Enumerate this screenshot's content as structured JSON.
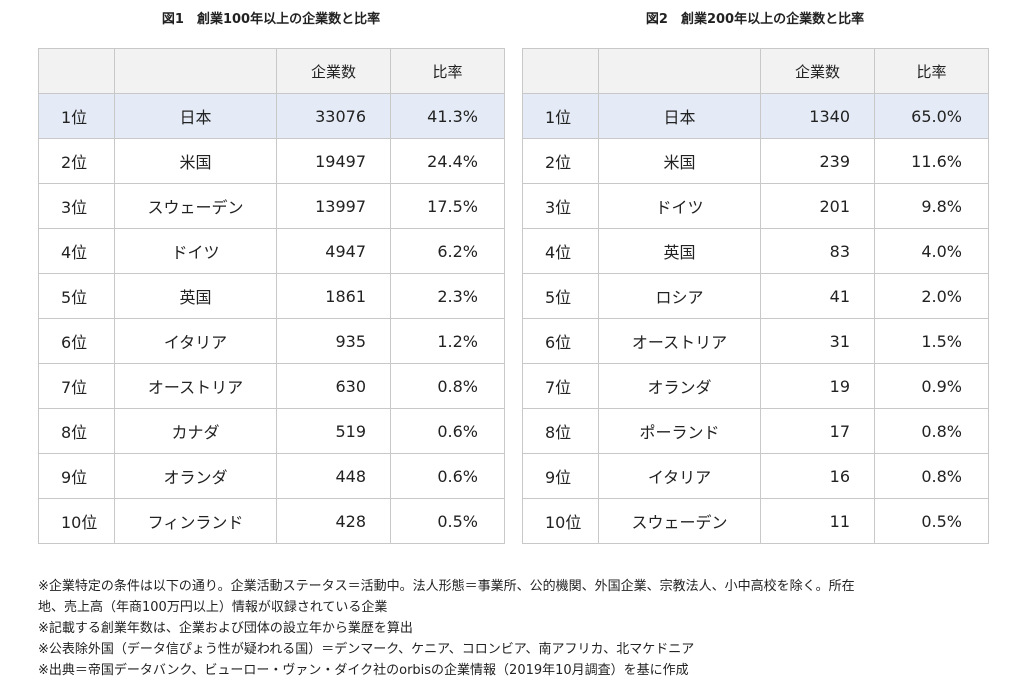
{
  "figure1": {
    "title": "図1　創業100年以上の企業数と比率",
    "headers": [
      "",
      "",
      "企業数",
      "比率"
    ],
    "rows": [
      {
        "rank": "1位",
        "country": "日本",
        "count": "33076",
        "ratio": "41.3%"
      },
      {
        "rank": "2位",
        "country": "米国",
        "count": "19497",
        "ratio": "24.4%"
      },
      {
        "rank": "3位",
        "country": "スウェーデン",
        "count": "13997",
        "ratio": "17.5%"
      },
      {
        "rank": "4位",
        "country": "ドイツ",
        "count": "4947",
        "ratio": "6.2%"
      },
      {
        "rank": "5位",
        "country": "英国",
        "count": "1861",
        "ratio": "2.3%"
      },
      {
        "rank": "6位",
        "country": "イタリア",
        "count": "935",
        "ratio": "1.2%"
      },
      {
        "rank": "7位",
        "country": "オーストリア",
        "count": "630",
        "ratio": "0.8%"
      },
      {
        "rank": "8位",
        "country": "カナダ",
        "count": "519",
        "ratio": "0.6%"
      },
      {
        "rank": "9位",
        "country": "オランダ",
        "count": "448",
        "ratio": "0.6%"
      },
      {
        "rank": "10位",
        "country": "フィンランド",
        "count": "428",
        "ratio": "0.5%"
      }
    ]
  },
  "figure2": {
    "title": "図2　創業200年以上の企業数と比率",
    "headers": [
      "",
      "",
      "企業数",
      "比率"
    ],
    "rows": [
      {
        "rank": "1位",
        "country": "日本",
        "count": "1340",
        "ratio": "65.0%"
      },
      {
        "rank": "2位",
        "country": "米国",
        "count": "239",
        "ratio": "11.6%"
      },
      {
        "rank": "3位",
        "country": "ドイツ",
        "count": "201",
        "ratio": "9.8%"
      },
      {
        "rank": "4位",
        "country": "英国",
        "count": "83",
        "ratio": "4.0%"
      },
      {
        "rank": "5位",
        "country": "ロシア",
        "count": "41",
        "ratio": "2.0%"
      },
      {
        "rank": "6位",
        "country": "オーストリア",
        "count": "31",
        "ratio": "1.5%"
      },
      {
        "rank": "7位",
        "country": "オランダ",
        "count": "19",
        "ratio": "0.9%"
      },
      {
        "rank": "8位",
        "country": "ポーランド",
        "count": "17",
        "ratio": "0.8%"
      },
      {
        "rank": "9位",
        "country": "イタリア",
        "count": "16",
        "ratio": "0.8%"
      },
      {
        "rank": "10位",
        "country": "スウェーデン",
        "count": "11",
        "ratio": "0.5%"
      }
    ]
  },
  "notes": [
    "※企業特定の条件は以下の通り。企業活動ステータス＝活動中。法人形態＝事業所、公的機関、外国企業、宗教法人、小中高校を除く。所在",
    "地、売上高（年商100万円以上）情報が収録されている企業",
    "※記載する創業年数は、企業および団体の設立年から業歴を算出",
    "※公表除外国（データ信ぴょう性が疑われる国）＝デンマーク、ケニア、コロンビア、南アフリカ、北マケドニア",
    "※出典＝帝国データバンク、ビューロー・ヴァン・ダイク社のorbisの企業情報（2019年10月調査）を基に作成"
  ],
  "colors": {
    "highlight_row": "#e4ebf6",
    "header_bg": "#f2f2f2",
    "border": "#c8c8c8"
  }
}
